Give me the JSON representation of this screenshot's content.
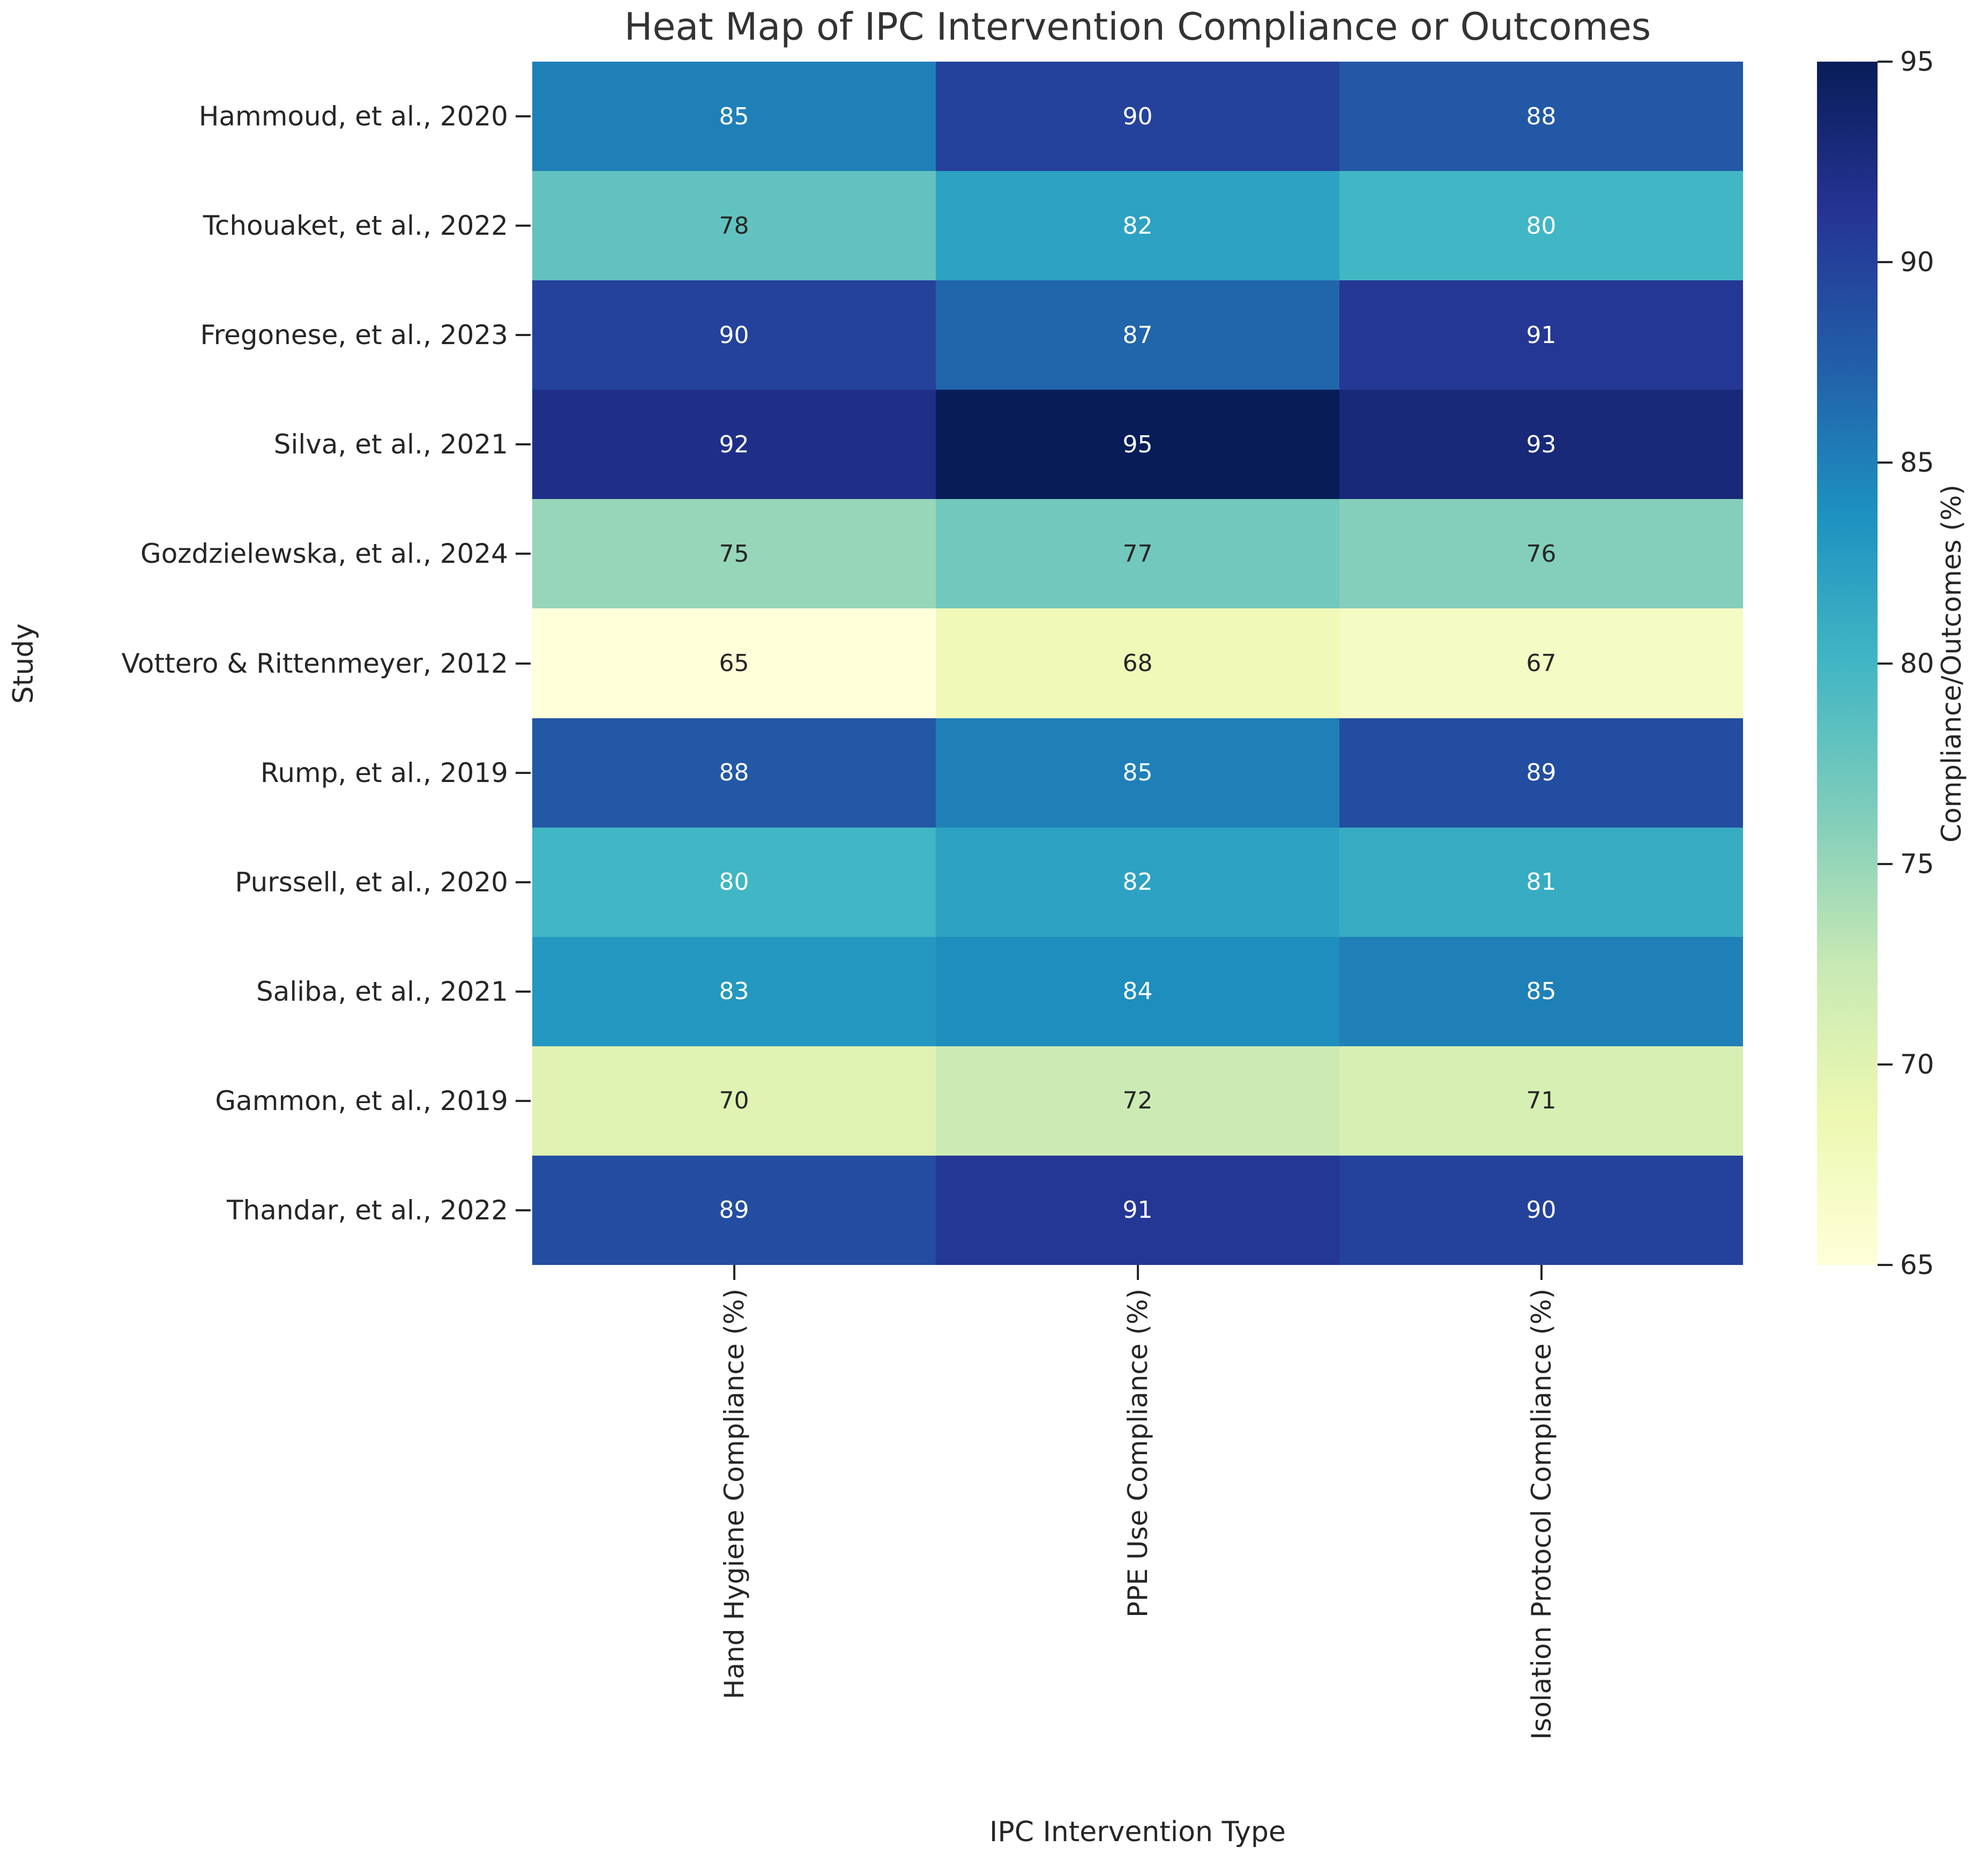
{
  "chart_data": {
    "type": "heatmap",
    "title": "Heat Map of IPC Intervention Compliance or Outcomes",
    "xlabel": "IPC Intervention Type",
    "ylabel": "Study",
    "columns": [
      "Hand Hygiene Compliance (%)",
      "PPE Use Compliance (%)",
      "Isolation Protocol Compliance (%)"
    ],
    "rows": [
      "Hammoud, et al., 2020",
      "Tchouaket, et al., 2022",
      "Fregonese, et al., 2023",
      "Silva, et al., 2021",
      "Gozdzielewska, et al., 2024",
      "Vottero & Rittenmeyer, 2012",
      "Rump, et al., 2019",
      "Purssell, et al., 2020",
      "Saliba, et al., 2021",
      "Gammon, et al., 2019",
      "Thandar, et al., 2022"
    ],
    "values": [
      [
        85,
        90,
        88
      ],
      [
        78,
        82,
        80
      ],
      [
        90,
        87,
        91
      ],
      [
        92,
        95,
        93
      ],
      [
        75,
        77,
        76
      ],
      [
        65,
        68,
        67
      ],
      [
        88,
        85,
        89
      ],
      [
        80,
        82,
        81
      ],
      [
        83,
        84,
        85
      ],
      [
        70,
        72,
        71
      ],
      [
        89,
        91,
        90
      ]
    ],
    "colorbar": {
      "label": "Compliance/Outcomes (%)",
      "ticks": [
        65,
        70,
        75,
        80,
        85,
        90,
        95
      ],
      "vmin": 65,
      "vmax": 95
    },
    "colormap": {
      "name": "YlGnBu",
      "stops": [
        "#ffffd9",
        "#edf8b1",
        "#c7e9b4",
        "#7fcdbb",
        "#41b6c4",
        "#1d91c0",
        "#225ea8",
        "#253494",
        "#081d58"
      ]
    },
    "annotation_colors": {
      "on_dark": "#ffffff",
      "on_light": "#262626"
    },
    "layout_hints": {
      "grid": false,
      "legend_position": "colorbar-right",
      "x_tick_rotation_deg": 90
    }
  }
}
